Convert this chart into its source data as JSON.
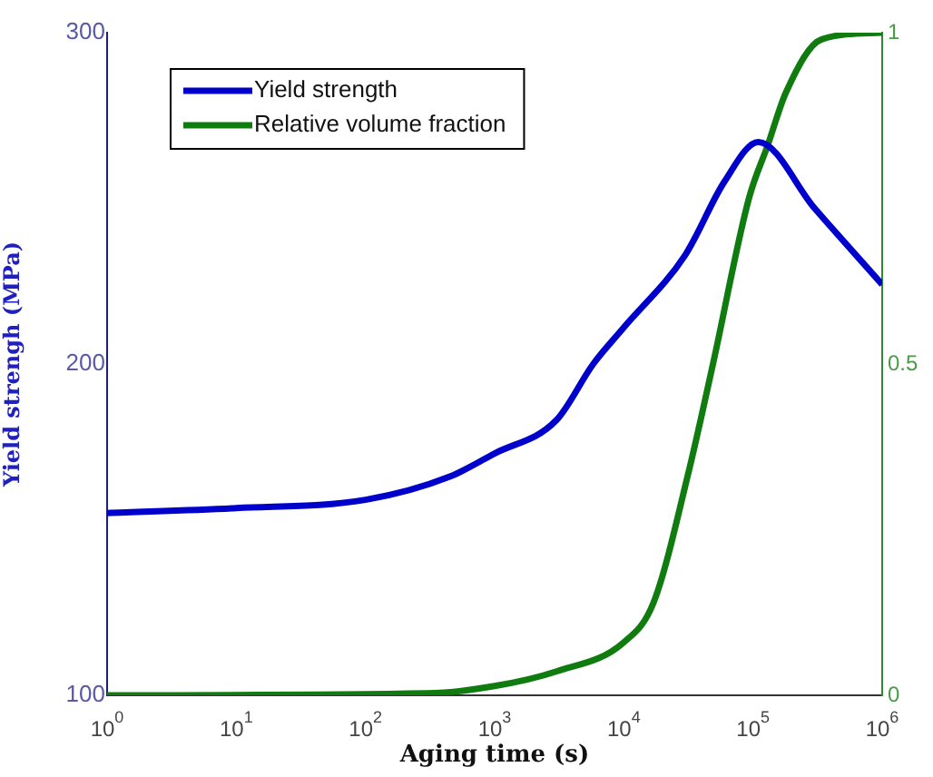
{
  "chart_data": {
    "type": "line",
    "xlabel": "Aging time (s)",
    "ylabel": "Yield strengh (MPa)",
    "log": "x",
    "grid": false,
    "legend": "top left",
    "marker": "none",
    "line_style": "solid",
    "xlim": [
      1,
      1000000
    ],
    "xticks": [
      {
        "value": 1,
        "label": "10$^{0}$"
      },
      {
        "value": 10,
        "label": "10$^{1}$"
      },
      {
        "value": 100,
        "label": "10$^{2}$"
      },
      {
        "value": 1000,
        "label": "10$^{3}$"
      },
      {
        "value": 10000,
        "label": "10$^{4}$"
      },
      {
        "value": 100000,
        "label": "10$^{5}$"
      },
      {
        "value": 1000000,
        "label": "10$^{6}$"
      }
    ],
    "ylim": [
      100,
      300
    ],
    "yticks": [
      100,
      200,
      300
    ],
    "y2lim": [
      0,
      1
    ],
    "y2ticks": [
      0,
      0.5,
      1
    ],
    "series": [
      {
        "name": "Yield strength",
        "color": "#0000cc",
        "x": [
          1,
          10,
          100,
          450,
          1000,
          3000,
          5800,
          10000,
          30000,
          60000,
          110000,
          300000,
          1000000
        ],
        "values": [
          155,
          156.5,
          159,
          166,
          173,
          183,
          200,
          211,
          233,
          255,
          267,
          247,
          224
        ]
      },
      {
        "name": "Relative volume fraction",
        "color": "#107c10",
        "axis": "y2",
        "x": [
          1,
          300,
          1000,
          3000,
          10000,
          17000,
          32000,
          49000,
          93000,
          130000,
          180000,
          340000,
          1000000
        ],
        "values": [
          0,
          0.003,
          0.014,
          0.036,
          0.08,
          0.14,
          0.34,
          0.5,
          0.75,
          0.83,
          0.91,
          0.99,
          1
        ]
      }
    ]
  }
}
